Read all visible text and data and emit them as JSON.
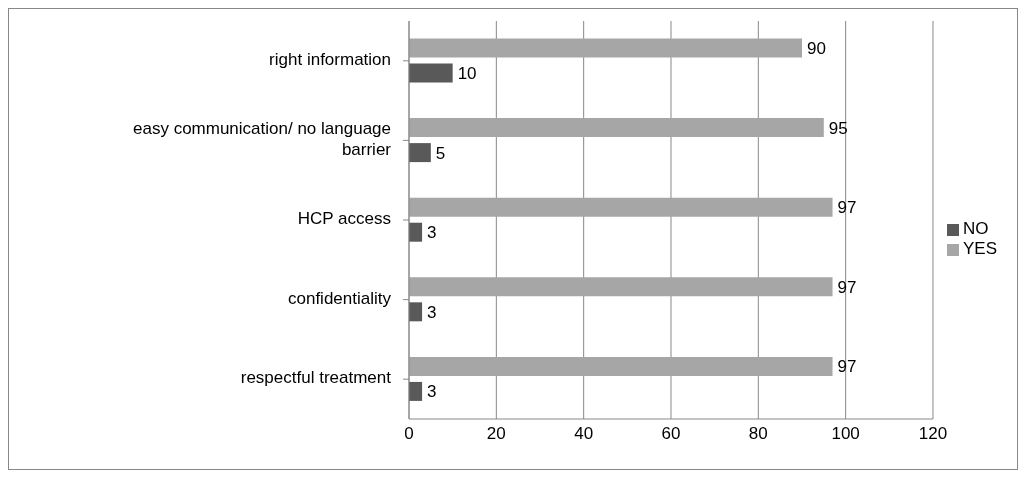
{
  "chart_data": {
    "type": "bar",
    "orientation": "horizontal",
    "categories": [
      "right information",
      "easy communication/  no language barrier",
      "HCP access",
      "confidentiality",
      "respectful treatment"
    ],
    "series": [
      {
        "name": "YES",
        "color": "#a6a6a6",
        "values": [
          90,
          95,
          97,
          97,
          97
        ]
      },
      {
        "name": "NO",
        "color": "#595959",
        "values": [
          10,
          5,
          3,
          3,
          3
        ]
      }
    ],
    "xlim": [
      0,
      120
    ],
    "xticks": [
      0,
      20,
      40,
      60,
      80,
      100,
      120
    ],
    "grid": "x",
    "legend": "right",
    "data_labels": true
  }
}
